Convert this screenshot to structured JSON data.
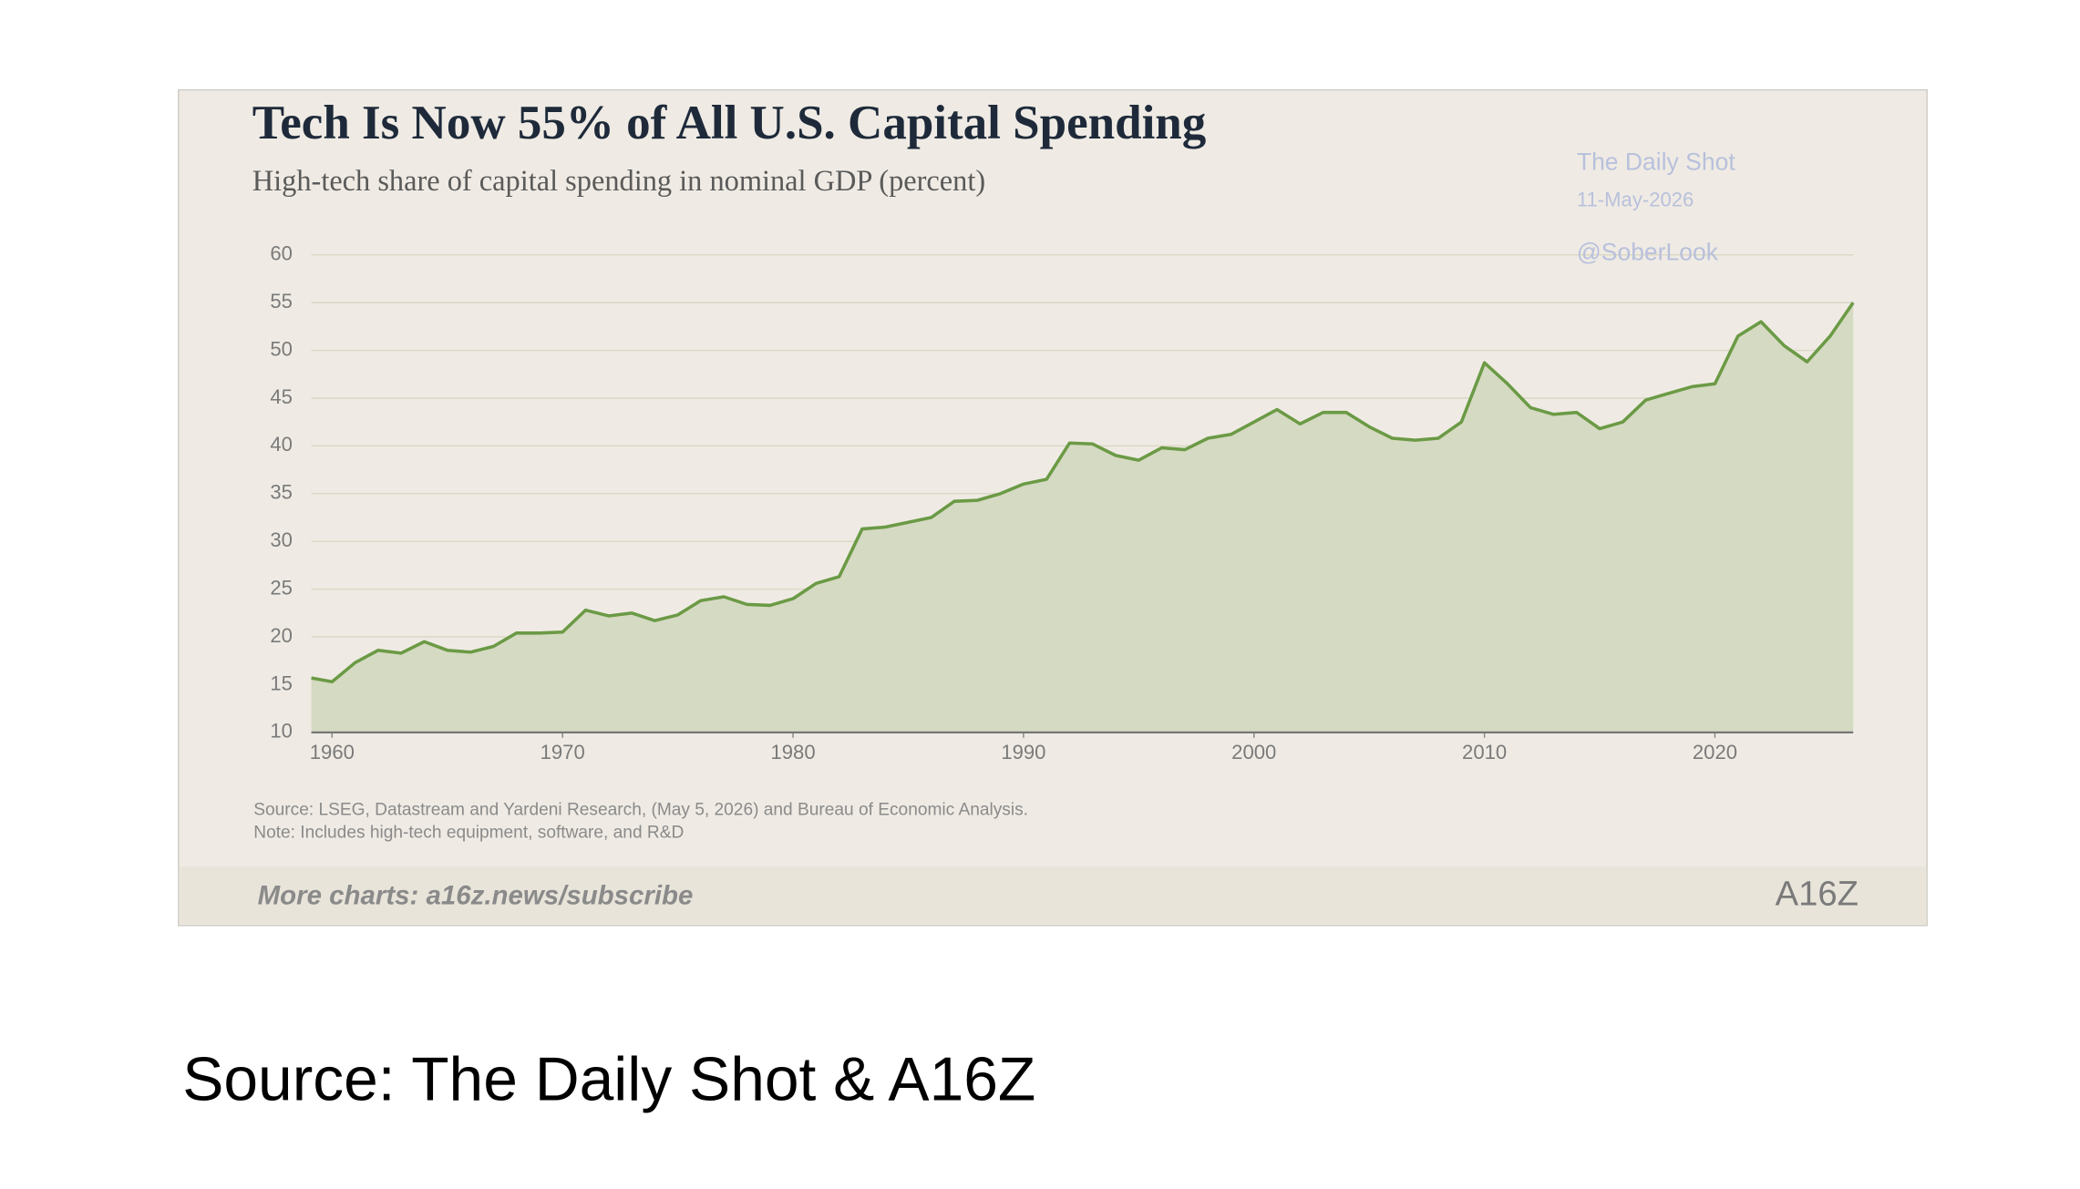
{
  "chart_data": {
    "type": "area",
    "title": "Tech Is Now 55% of All U.S. Capital Spending",
    "subtitle": "High-tech share of capital spending in nominal GDP (percent)",
    "source_note": "Source: LSEG, Datastream and Yardeni Research, (May 5, 2026) and Bureau of Economic Analysis.",
    "note": "Note: Includes high-tech equipment, software, and R&D",
    "footer": "More charts: a16z.news/subscribe",
    "logo": "A16Z",
    "watermark": [
      "The Daily Shot",
      "11-May-2026",
      "@SoberLook"
    ],
    "color": "#6b9a45",
    "fill_color": "#d5dac2",
    "grid": true,
    "x": [
      1959.1,
      1960,
      1961,
      1962,
      1963,
      1964,
      1965,
      1966,
      1967,
      1968,
      1969,
      1970,
      1971,
      1972,
      1973,
      1974,
      1975,
      1976,
      1977,
      1978,
      1979,
      1980,
      1981,
      1982,
      1983,
      1984,
      1985,
      1986,
      1987,
      1988,
      1989,
      1990,
      1991,
      1992,
      1993,
      1994,
      1995,
      1996,
      1997,
      1998,
      1999,
      2000,
      2001,
      2002,
      2003,
      2004,
      2005,
      2006,
      2007,
      2008,
      2009,
      2010,
      2011,
      2012,
      2013,
      2014,
      2015,
      2016,
      2017,
      2018,
      2019,
      2020,
      2021,
      2022,
      2023,
      2024,
      2025,
      2026
    ],
    "values": [
      15.7,
      15.3,
      17.3,
      18.6,
      18.3,
      19.5,
      18.6,
      18.4,
      19.0,
      20.4,
      20.4,
      20.5,
      22.8,
      22.2,
      22.5,
      21.7,
      22.3,
      23.8,
      24.2,
      23.4,
      23.3,
      24.0,
      25.6,
      26.3,
      31.3,
      31.5,
      32.0,
      32.5,
      34.2,
      34.3,
      35.0,
      36.0,
      36.5,
      40.3,
      40.2,
      39.0,
      38.5,
      39.8,
      39.6,
      40.8,
      41.2,
      42.5,
      43.8,
      42.3,
      43.5,
      43.5,
      42.0,
      40.8,
      40.6,
      40.8,
      42.5,
      48.7,
      46.5,
      44.0,
      43.3,
      43.5,
      41.8,
      42.5,
      44.8,
      45.5,
      46.2,
      46.5,
      51.5,
      53.0,
      50.5,
      48.8,
      51.5,
      55.0
    ],
    "xlim": [
      1959.1,
      2026
    ],
    "xticks": [
      1960,
      1970,
      1980,
      1990,
      2000,
      2010,
      2020
    ],
    "ylim": [
      10,
      60
    ],
    "yticks": [
      10,
      15,
      20,
      25,
      30,
      35,
      40,
      45,
      50,
      55,
      60
    ]
  },
  "caption": "Source: The Daily Shot & A16Z"
}
